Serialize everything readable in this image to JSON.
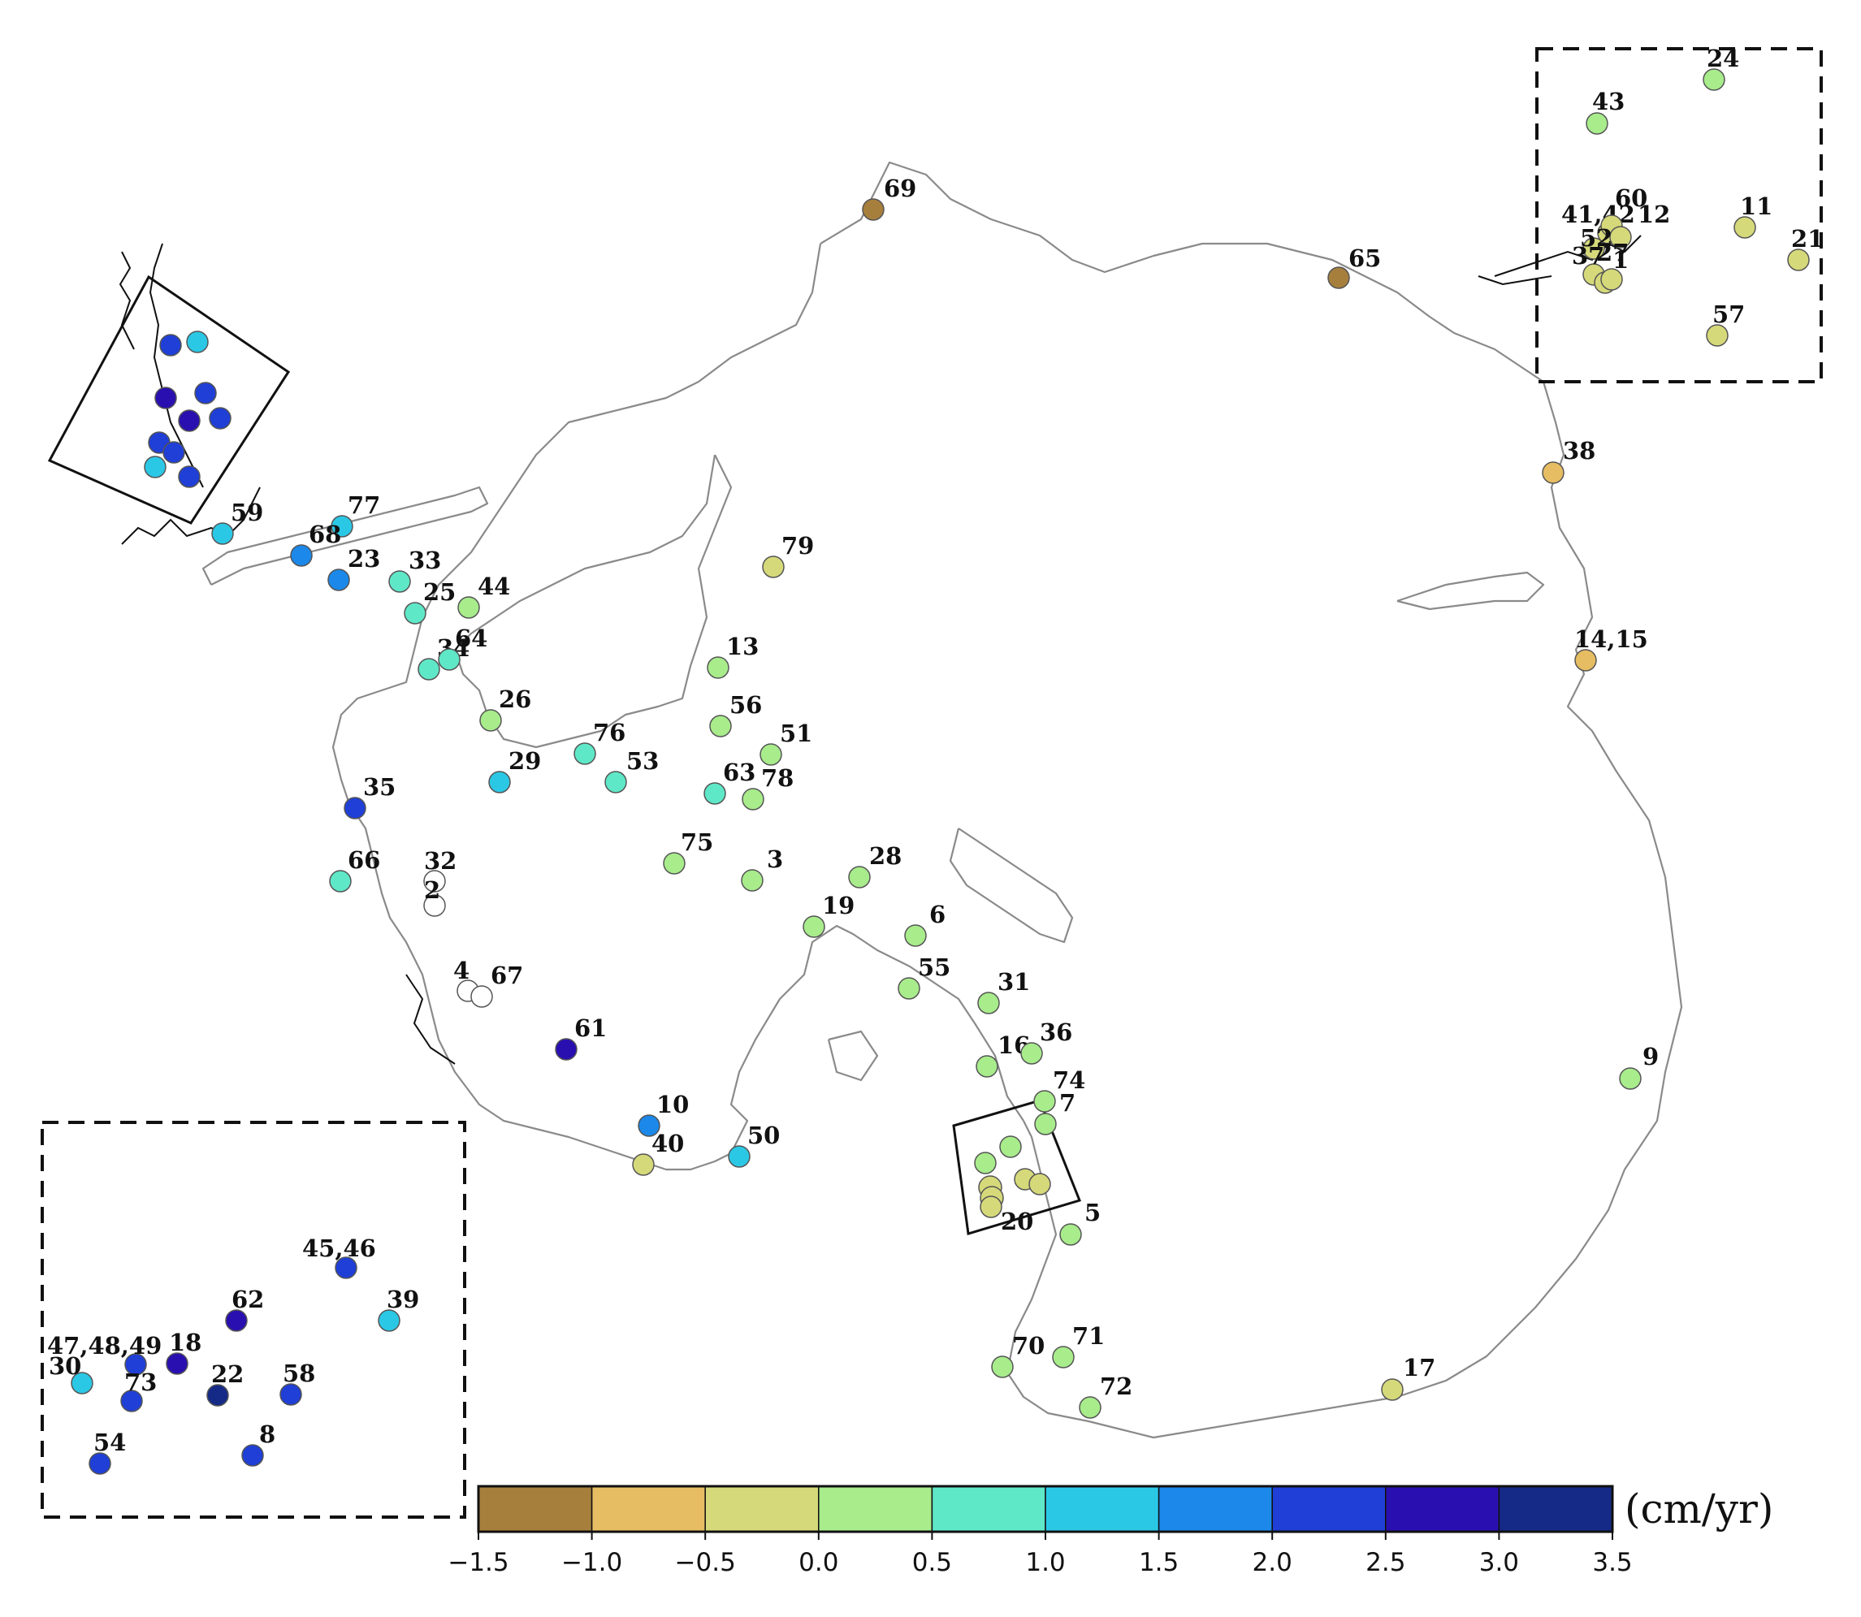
{
  "colorbar": {
    "unit": "(cm/yr)",
    "ticks": [
      "−1.5",
      "−1.0",
      "−0.5",
      "0.0",
      "0.5",
      "1.0",
      "1.5",
      "2.0",
      "2.5",
      "3.0",
      "3.5"
    ],
    "bins": [
      {
        "range": [
          -1.5,
          -1.0
        ],
        "color": "#a77f3d"
      },
      {
        "range": [
          -1.0,
          -0.5
        ],
        "color": "#e6bd62"
      },
      {
        "range": [
          -0.5,
          0.0
        ],
        "color": "#d5d97a"
      },
      {
        "range": [
          0.0,
          0.5
        ],
        "color": "#a8ec8c"
      },
      {
        "range": [
          0.5,
          1.0
        ],
        "color": "#5fe8c8"
      },
      {
        "range": [
          1.0,
          1.5
        ],
        "color": "#2bc8e6"
      },
      {
        "range": [
          1.5,
          2.0
        ],
        "color": "#1b88ea"
      },
      {
        "range": [
          2.0,
          2.5
        ],
        "color": "#1f3fd6"
      },
      {
        "range": [
          2.5,
          3.0
        ],
        "color": "#2a0fb0"
      },
      {
        "range": [
          3.0,
          3.5
        ],
        "color": "#152a86"
      }
    ]
  },
  "sites": [
    {
      "label": "69",
      "color": "#a77f3d"
    },
    {
      "label": "65",
      "color": "#a77f3d"
    },
    {
      "label": "38",
      "color": "#e6bd62"
    },
    {
      "label": "14,15",
      "color": "#e6bd62"
    },
    {
      "label": "9",
      "color": "#a8ec8c"
    },
    {
      "label": "17",
      "color": "#d5d97a"
    },
    {
      "label": "79",
      "color": "#d5d97a"
    },
    {
      "label": "13",
      "color": "#a8ec8c"
    },
    {
      "label": "56",
      "color": "#a8ec8c"
    },
    {
      "label": "51",
      "color": "#a8ec8c"
    },
    {
      "label": "63",
      "color": "#5fe8c8"
    },
    {
      "label": "78",
      "color": "#a8ec8c"
    },
    {
      "label": "76",
      "color": "#5fe8c8"
    },
    {
      "label": "53",
      "color": "#5fe8c8"
    },
    {
      "label": "75",
      "color": "#a8ec8c"
    },
    {
      "label": "3",
      "color": "#a8ec8c"
    },
    {
      "label": "28",
      "color": "#a8ec8c"
    },
    {
      "label": "19",
      "color": "#a8ec8c"
    },
    {
      "label": "6",
      "color": "#a8ec8c"
    },
    {
      "label": "55",
      "color": "#a8ec8c"
    },
    {
      "label": "31",
      "color": "#a8ec8c"
    },
    {
      "label": "16",
      "color": "#a8ec8c"
    },
    {
      "label": "36",
      "color": "#a8ec8c"
    },
    {
      "label": "74",
      "color": "#a8ec8c"
    },
    {
      "label": "7",
      "color": "#a8ec8c"
    },
    {
      "label": "20",
      "color": "#d5d97a"
    },
    {
      "label": "5",
      "color": "#a8ec8c"
    },
    {
      "label": "70",
      "color": "#a8ec8c"
    },
    {
      "label": "71",
      "color": "#a8ec8c"
    },
    {
      "label": "72",
      "color": "#a8ec8c"
    },
    {
      "label": "61",
      "color": "#2a0fb0"
    },
    {
      "label": "10",
      "color": "#1b88ea"
    },
    {
      "label": "40",
      "color": "#d5d97a"
    },
    {
      "label": "50",
      "color": "#2bc8e6"
    },
    {
      "label": "77",
      "color": "#2bc8e6"
    },
    {
      "label": "59",
      "color": "#2bc8e6"
    },
    {
      "label": "68",
      "color": "#1b88ea"
    },
    {
      "label": "23",
      "color": "#1b88ea"
    },
    {
      "label": "33",
      "color": "#5fe8c8"
    },
    {
      "label": "25",
      "color": "#5fe8c8"
    },
    {
      "label": "44",
      "color": "#a8ec8c"
    },
    {
      "label": "34",
      "color": "#5fe8c8"
    },
    {
      "label": "64",
      "color": "#5fe8c8"
    },
    {
      "label": "26",
      "color": "#a8ec8c"
    },
    {
      "label": "29",
      "color": "#2bc8e6"
    },
    {
      "label": "35",
      "color": "#1f3fd6"
    },
    {
      "label": "66",
      "color": "#5fe8c8"
    },
    {
      "label": "32",
      "color": "#ffffff"
    },
    {
      "label": "2",
      "color": "#ffffff"
    },
    {
      "label": "4",
      "color": "#ffffff"
    },
    {
      "label": "67",
      "color": "#ffffff"
    },
    {
      "label": "24",
      "color": "#a8ec8c"
    },
    {
      "label": "43",
      "color": "#a8ec8c"
    },
    {
      "label": "41,42",
      "color": "#d5d97a"
    },
    {
      "label": "60",
      "color": "#d5d97a"
    },
    {
      "label": "12",
      "color": "#d5d97a"
    },
    {
      "label": "52",
      "color": "#d5d97a"
    },
    {
      "label": "37",
      "color": "#d5d97a"
    },
    {
      "label": "27",
      "color": "#d5d97a"
    },
    {
      "label": "1",
      "color": "#d5d97a"
    },
    {
      "label": "11",
      "color": "#d5d97a"
    },
    {
      "label": "21",
      "color": "#d5d97a"
    },
    {
      "label": "57",
      "color": "#d5d97a"
    },
    {
      "label": "45,46",
      "color": "#1f3fd6"
    },
    {
      "label": "39",
      "color": "#2bc8e6"
    },
    {
      "label": "62",
      "color": "#2a0fb0"
    },
    {
      "label": "47,48,49",
      "color": "#1f3fd6"
    },
    {
      "label": "30",
      "color": "#2bc8e6"
    },
    {
      "label": "18",
      "color": "#2a0fb0"
    },
    {
      "label": "73",
      "color": "#1f3fd6"
    },
    {
      "label": "22",
      "color": "#152a86"
    },
    {
      "label": "58",
      "color": "#1f3fd6"
    },
    {
      "label": "54",
      "color": "#1f3fd6"
    },
    {
      "label": "8",
      "color": "#1f3fd6"
    }
  ]
}
